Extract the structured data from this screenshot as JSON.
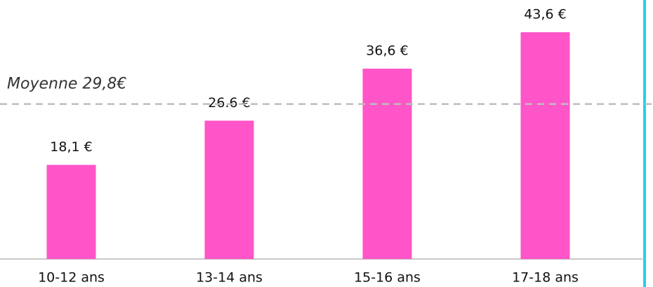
{
  "chart_data": {
    "type": "bar",
    "categories": [
      "10-12 ans",
      "13-14 ans",
      "15-16 ans",
      "17-18 ans"
    ],
    "values": [
      18.1,
      26.6,
      36.6,
      43.6
    ],
    "value_labels": [
      "18,1 €",
      "26.6 €",
      "36,6 €",
      "43,6 €"
    ],
    "color": "#ff55c8",
    "average": {
      "value": 29.8,
      "label": "Moyenne 29,8€"
    }
  }
}
